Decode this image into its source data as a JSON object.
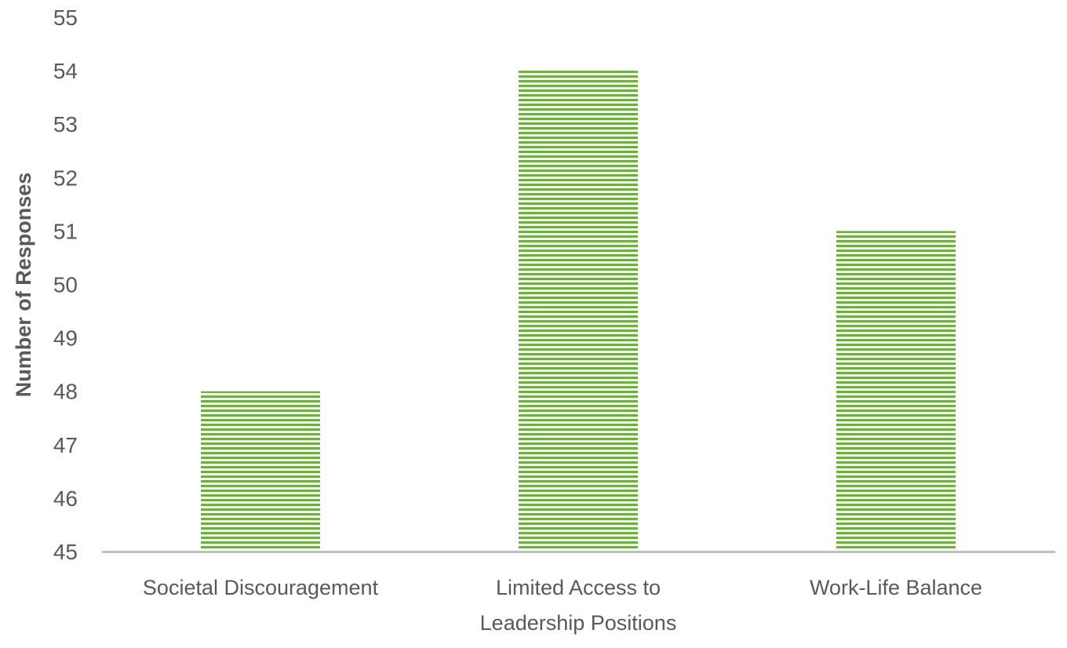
{
  "chart_data": {
    "type": "bar",
    "title": "",
    "xlabel": "",
    "ylabel": "Number of Responses",
    "categories": [
      [
        "Societal Discouragement"
      ],
      [
        "Limited Access to",
        "Leadership Positions"
      ],
      [
        "Work-Life Balance"
      ]
    ],
    "values": [
      48,
      54,
      51
    ],
    "ylim": [
      45,
      55
    ],
    "yticks": [
      45,
      46,
      47,
      48,
      49,
      50,
      51,
      52,
      53,
      54,
      55
    ],
    "grid": false,
    "legend": "none",
    "colors": {
      "bar_dark": "#70ad47",
      "bar_light": "#ffffff",
      "axis_line": "#bfbfbf",
      "text": "#595959"
    }
  }
}
